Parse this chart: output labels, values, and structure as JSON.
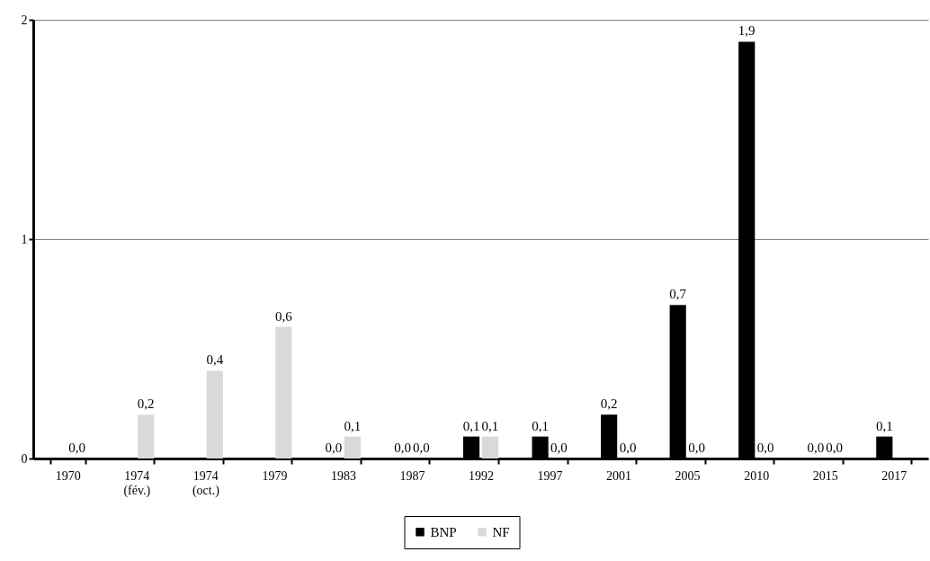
{
  "chart_data": {
    "type": "bar",
    "categories": [
      "1970",
      "1974\n(fév.)",
      "1974\n(oct.)",
      "1979",
      "1983",
      "1987",
      "1992",
      "1997",
      "2001",
      "2005",
      "2010",
      "2015",
      "2017"
    ],
    "series": [
      {
        "name": "BNP",
        "color": "#000000",
        "values": [
          null,
          null,
          null,
          null,
          0.0,
          0.0,
          0.1,
          0.1,
          0.2,
          0.7,
          1.9,
          0.0,
          0.1
        ],
        "value_labels": [
          null,
          null,
          null,
          null,
          "0,0",
          "0,0",
          "0,1",
          "0,1",
          "0,2",
          "0,7",
          "1,9",
          "0,0",
          "0,1"
        ]
      },
      {
        "name": "NF",
        "color": "#d9d9d9",
        "values": [
          0.0,
          0.2,
          0.4,
          0.6,
          0.1,
          0.0,
          0.1,
          0.0,
          0.0,
          0.0,
          0.0,
          0.0,
          null
        ],
        "value_labels": [
          "0,0",
          "0,2",
          "0,4",
          "0,6",
          "0,1",
          "0,0",
          "0,1",
          "0,0",
          "0,0",
          "0,0",
          "0,0",
          "0,0",
          null
        ]
      }
    ],
    "ylim": [
      0,
      2
    ],
    "yticks": [
      0,
      1,
      2
    ],
    "grid": "y",
    "legend": "bottom"
  }
}
